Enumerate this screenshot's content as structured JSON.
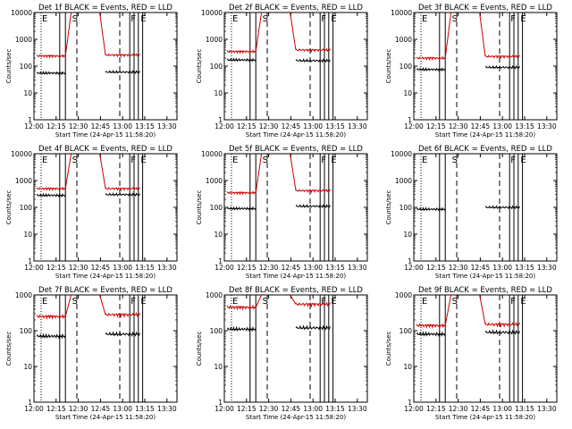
{
  "chart_data": [
    {
      "type": "line",
      "title": "Det 1f BLACK = Events, RED = LLD",
      "xlabel": "Start Time (24-Apr-15 11:58:20)",
      "ylabel": "Counts/sec",
      "x_ticks": [
        "12:00",
        "12:15",
        "12:30",
        "12:45",
        "13:00",
        "13:15",
        "13:30"
      ],
      "y_ticks": [
        "1",
        "10",
        "100",
        "1000",
        "10000"
      ],
      "y_scale": "log",
      "xlim_min": [
        0,
        100
      ],
      "ylim": [
        1,
        10000
      ],
      "flags": [
        {
          "t": 5,
          "label": "E"
        },
        {
          "t": 26,
          "label": "S"
        },
        {
          "t": 67,
          "label": "F"
        },
        {
          "t": 74,
          "label": "E"
        }
      ],
      "series": [
        {
          "name": "Events",
          "color": "#000000",
          "segments": [
            {
              "t0": 2,
              "t1": 22,
              "level": 55
            },
            {
              "t0": 50,
              "t1": 74,
              "level": 60
            }
          ]
        },
        {
          "name": "LLD",
          "color": "#cc0000",
          "segments": [
            {
              "t0": 2,
              "t1": 22,
              "level": 240
            },
            {
              "t0": 50,
              "t1": 74,
              "level": 260
            }
          ],
          "curve": [
            {
              "t0": 22,
              "t1": 26,
              "from": 240,
              "to": 10000
            },
            {
              "t0": 46,
              "t1": 50,
              "from": 10000,
              "to": 260
            }
          ]
        }
      ]
    },
    {
      "type": "line",
      "title": "Det 2f BLACK = Events, RED = LLD",
      "xlabel": "Start Time (24-Apr-15 11:58:20)",
      "ylabel": "Counts/sec",
      "x_ticks": [
        "12:00",
        "12:15",
        "12:30",
        "12:45",
        "13:00",
        "13:15",
        "13:30"
      ],
      "y_ticks": [
        "1",
        "10",
        "100",
        "1000",
        "10000"
      ],
      "y_scale": "log",
      "xlim_min": [
        0,
        100
      ],
      "ylim": [
        1,
        10000
      ],
      "flags": [
        {
          "t": 5,
          "label": "E"
        },
        {
          "t": 26,
          "label": "S"
        },
        {
          "t": 67,
          "label": "F"
        },
        {
          "t": 74,
          "label": "E"
        }
      ],
      "series": [
        {
          "name": "Events",
          "color": "#000000",
          "segments": [
            {
              "t0": 2,
              "t1": 22,
              "level": 170
            },
            {
              "t0": 50,
              "t1": 74,
              "level": 160
            }
          ]
        },
        {
          "name": "LLD",
          "color": "#cc0000",
          "segments": [
            {
              "t0": 2,
              "t1": 22,
              "level": 350
            },
            {
              "t0": 50,
              "t1": 74,
              "level": 400
            }
          ],
          "curve": [
            {
              "t0": 22,
              "t1": 26,
              "from": 350,
              "to": 10000
            },
            {
              "t0": 46,
              "t1": 50,
              "from": 10000,
              "to": 400
            }
          ]
        }
      ]
    },
    {
      "type": "line",
      "title": "Det 3f BLACK = Events, RED = LLD",
      "xlabel": "Start Time (24-Apr-15 11:58:20)",
      "ylabel": "Counts/sec",
      "x_ticks": [
        "12:00",
        "12:15",
        "12:30",
        "12:45",
        "13:00",
        "13:15",
        "13:30"
      ],
      "y_ticks": [
        "1",
        "10",
        "100",
        "1000",
        "10000"
      ],
      "y_scale": "log",
      "xlim_min": [
        0,
        100
      ],
      "ylim": [
        1,
        10000
      ],
      "flags": [
        {
          "t": 5,
          "label": "E"
        },
        {
          "t": 26,
          "label": "S"
        },
        {
          "t": 67,
          "label": "F"
        },
        {
          "t": 74,
          "label": "E"
        }
      ],
      "series": [
        {
          "name": "Events",
          "color": "#000000",
          "segments": [
            {
              "t0": 2,
              "t1": 22,
              "level": 75
            },
            {
              "t0": 50,
              "t1": 74,
              "level": 90
            }
          ]
        },
        {
          "name": "LLD",
          "color": "#cc0000",
          "segments": [
            {
              "t0": 2,
              "t1": 22,
              "level": 200
            },
            {
              "t0": 50,
              "t1": 74,
              "level": 230
            }
          ],
          "curve": [
            {
              "t0": 22,
              "t1": 26,
              "from": 200,
              "to": 10000
            },
            {
              "t0": 46,
              "t1": 50,
              "from": 10000,
              "to": 230
            }
          ]
        }
      ]
    },
    {
      "type": "line",
      "title": "Det 4f BLACK = Events, RED = LLD",
      "xlabel": "Start Time (24-Apr-15 11:58:20)",
      "ylabel": "Counts/sec",
      "x_ticks": [
        "12:00",
        "12:15",
        "12:30",
        "12:45",
        "13:00",
        "13:15",
        "13:30"
      ],
      "y_ticks": [
        "1",
        "10",
        "100",
        "1000",
        "10000"
      ],
      "y_scale": "log",
      "xlim_min": [
        0,
        100
      ],
      "ylim": [
        1,
        10000
      ],
      "flags": [
        {
          "t": 5,
          "label": "E"
        },
        {
          "t": 26,
          "label": "S"
        },
        {
          "t": 67,
          "label": "F"
        },
        {
          "t": 74,
          "label": "E"
        }
      ],
      "series": [
        {
          "name": "Events",
          "color": "#000000",
          "segments": [
            {
              "t0": 2,
              "t1": 22,
              "level": 280
            },
            {
              "t0": 50,
              "t1": 74,
              "level": 300
            }
          ]
        },
        {
          "name": "LLD",
          "color": "#cc0000",
          "segments": [
            {
              "t0": 2,
              "t1": 22,
              "level": 500
            },
            {
              "t0": 50,
              "t1": 74,
              "level": 500
            }
          ],
          "curve": [
            {
              "t0": 22,
              "t1": 26,
              "from": 500,
              "to": 10000
            },
            {
              "t0": 46,
              "t1": 50,
              "from": 10000,
              "to": 500
            }
          ]
        }
      ]
    },
    {
      "type": "line",
      "title": "Det 5f BLACK = Events, RED = LLD",
      "xlabel": "Start Time (24-Apr-15 11:58:20)",
      "ylabel": "Counts/sec",
      "x_ticks": [
        "12:00",
        "12:15",
        "12:30",
        "12:45",
        "13:00",
        "13:15",
        "13:30"
      ],
      "y_ticks": [
        "1",
        "10",
        "100",
        "1000",
        "10000"
      ],
      "y_scale": "log",
      "xlim_min": [
        0,
        100
      ],
      "ylim": [
        1,
        10000
      ],
      "flags": [
        {
          "t": 5,
          "label": "E"
        },
        {
          "t": 26,
          "label": "S"
        },
        {
          "t": 67,
          "label": "F"
        },
        {
          "t": 74,
          "label": "E"
        }
      ],
      "series": [
        {
          "name": "Events",
          "color": "#000000",
          "segments": [
            {
              "t0": 2,
              "t1": 22,
              "level": 90
            },
            {
              "t0": 50,
              "t1": 74,
              "level": 110
            }
          ]
        },
        {
          "name": "LLD",
          "color": "#cc0000",
          "segments": [
            {
              "t0": 2,
              "t1": 22,
              "level": 350
            },
            {
              "t0": 50,
              "t1": 74,
              "level": 420
            }
          ],
          "curve": [
            {
              "t0": 22,
              "t1": 26,
              "from": 350,
              "to": 10000
            },
            {
              "t0": 46,
              "t1": 50,
              "from": 10000,
              "to": 420
            }
          ]
        }
      ]
    },
    {
      "type": "line",
      "title": "Det 6f BLACK = Events, RED = LLD",
      "xlabel": "Start Time (24-Apr-15 11:58:20)",
      "ylabel": "Counts/sec",
      "x_ticks": [
        "12:00",
        "12:15",
        "12:30",
        "12:45",
        "13:00",
        "13:15",
        "13:30"
      ],
      "y_ticks": [
        "1",
        "10",
        "100",
        "1000",
        "10000"
      ],
      "y_scale": "log",
      "xlim_min": [
        0,
        100
      ],
      "ylim": [
        1,
        10000
      ],
      "flags": [
        {
          "t": 5,
          "label": "E"
        },
        {
          "t": 26,
          "label": "S"
        },
        {
          "t": 67,
          "label": "F"
        },
        {
          "t": 74,
          "label": "E"
        }
      ],
      "series": [
        {
          "name": "Events",
          "color": "#000000",
          "segments": [
            {
              "t0": 2,
              "t1": 22,
              "level": 85
            },
            {
              "t0": 50,
              "t1": 74,
              "level": 100
            }
          ]
        },
        {
          "name": "LLD",
          "color": "#cc0000",
          "segments": [],
          "curve": []
        }
      ]
    },
    {
      "type": "line",
      "title": "Det 7f BLACK = Events, RED = LLD",
      "xlabel": "Start Time (24-Apr-15 11:58:20)",
      "ylabel": "Counts/sec",
      "x_ticks": [
        "12:00",
        "12:15",
        "12:30",
        "12:45",
        "13:00",
        "13:15",
        "13:30"
      ],
      "y_ticks": [
        "1",
        "10",
        "100",
        "1000"
      ],
      "y_scale": "log",
      "xlim_min": [
        0,
        100
      ],
      "ylim": [
        1,
        1000
      ],
      "flags": [
        {
          "t": 5,
          "label": "E"
        },
        {
          "t": 26,
          "label": "S"
        },
        {
          "t": 67,
          "label": "F"
        },
        {
          "t": 74,
          "label": "E"
        }
      ],
      "series": [
        {
          "name": "Events",
          "color": "#000000",
          "segments": [
            {
              "t0": 2,
              "t1": 22,
              "level": 70
            },
            {
              "t0": 50,
              "t1": 74,
              "level": 80
            }
          ]
        },
        {
          "name": "LLD",
          "color": "#cc0000",
          "segments": [
            {
              "t0": 2,
              "t1": 22,
              "level": 250
            },
            {
              "t0": 50,
              "t1": 74,
              "level": 280
            }
          ],
          "curve": [
            {
              "t0": 22,
              "t1": 26,
              "from": 250,
              "to": 1000
            },
            {
              "t0": 46,
              "t1": 50,
              "from": 1000,
              "to": 280
            }
          ]
        }
      ]
    },
    {
      "type": "line",
      "title": "Det 8f BLACK = Events, RED = LLD",
      "xlabel": "Start Time (24-Apr-15 11:58:20)",
      "ylabel": "Counts/sec",
      "x_ticks": [
        "12:00",
        "12:15",
        "12:30",
        "12:45",
        "13:00",
        "13:15",
        "13:30"
      ],
      "y_ticks": [
        "1",
        "10",
        "100",
        "1000"
      ],
      "y_scale": "log",
      "xlim_min": [
        0,
        100
      ],
      "ylim": [
        1,
        1000
      ],
      "flags": [
        {
          "t": 5,
          "label": "E"
        },
        {
          "t": 26,
          "label": "S"
        },
        {
          "t": 67,
          "label": "F"
        },
        {
          "t": 74,
          "label": "E"
        }
      ],
      "series": [
        {
          "name": "Events",
          "color": "#000000",
          "segments": [
            {
              "t0": 2,
              "t1": 22,
              "level": 110
            },
            {
              "t0": 50,
              "t1": 74,
              "level": 120
            }
          ]
        },
        {
          "name": "LLD",
          "color": "#cc0000",
          "segments": [
            {
              "t0": 2,
              "t1": 22,
              "level": 450
            },
            {
              "t0": 50,
              "t1": 74,
              "level": 550
            }
          ],
          "curve": [
            {
              "t0": 22,
              "t1": 26,
              "from": 450,
              "to": 1000
            },
            {
              "t0": 46,
              "t1": 50,
              "from": 1000,
              "to": 550
            }
          ]
        }
      ]
    },
    {
      "type": "line",
      "title": "Det 9f BLACK = Events, RED = LLD",
      "xlabel": "Start Time (24-Apr-15 11:58:20)",
      "ylabel": "Counts/sec",
      "x_ticks": [
        "12:00",
        "12:15",
        "12:30",
        "12:45",
        "13:00",
        "13:15",
        "13:30"
      ],
      "y_ticks": [
        "1",
        "10",
        "100",
        "1000"
      ],
      "y_scale": "log",
      "xlim_min": [
        0,
        100
      ],
      "ylim": [
        1,
        1000
      ],
      "flags": [
        {
          "t": 5,
          "label": "E"
        },
        {
          "t": 26,
          "label": "S"
        },
        {
          "t": 67,
          "label": "F"
        },
        {
          "t": 74,
          "label": "E"
        }
      ],
      "series": [
        {
          "name": "Events",
          "color": "#000000",
          "segments": [
            {
              "t0": 2,
              "t1": 22,
              "level": 80
            },
            {
              "t0": 50,
              "t1": 74,
              "level": 90
            }
          ]
        },
        {
          "name": "LLD",
          "color": "#cc0000",
          "segments": [
            {
              "t0": 2,
              "t1": 22,
              "level": 140
            },
            {
              "t0": 50,
              "t1": 74,
              "level": 150
            }
          ],
          "curve": [
            {
              "t0": 22,
              "t1": 26,
              "from": 140,
              "to": 1000
            },
            {
              "t0": 46,
              "t1": 50,
              "from": 1000,
              "to": 150
            }
          ]
        }
      ]
    }
  ]
}
